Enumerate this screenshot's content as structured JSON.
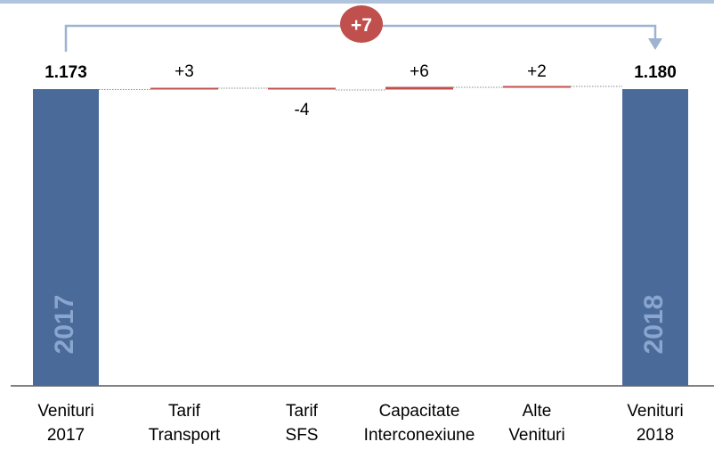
{
  "chart_data": {
    "type": "bar",
    "subtype": "waterfall",
    "categories": [
      "Venituri\n2017",
      "Tarif\nTransport",
      "Tarif\nSFS",
      "Capacitate\nInterconexiune",
      "Alte\nVenituri",
      "Venituri\n2018"
    ],
    "values": [
      1173,
      3,
      -4,
      6,
      2,
      1180
    ],
    "kinds": [
      "total",
      "delta",
      "delta",
      "delta",
      "delta",
      "total"
    ],
    "value_labels": [
      "1.173",
      "+3",
      "-4",
      "+6",
      "+2",
      "1.180"
    ],
    "bar_text": [
      "2017",
      "",
      "",
      "",
      "",
      "2018"
    ],
    "total_change": {
      "label": "+7",
      "from": 0,
      "to": 5
    },
    "colors": {
      "total": "#4a6b9a",
      "total_text": "#8aa6cf",
      "delta": "#c0504d",
      "bracket": "#9eb3d1",
      "top_rule": "#b0c4de",
      "badge": "#c0504d",
      "badge_text": "#ffffff"
    }
  }
}
